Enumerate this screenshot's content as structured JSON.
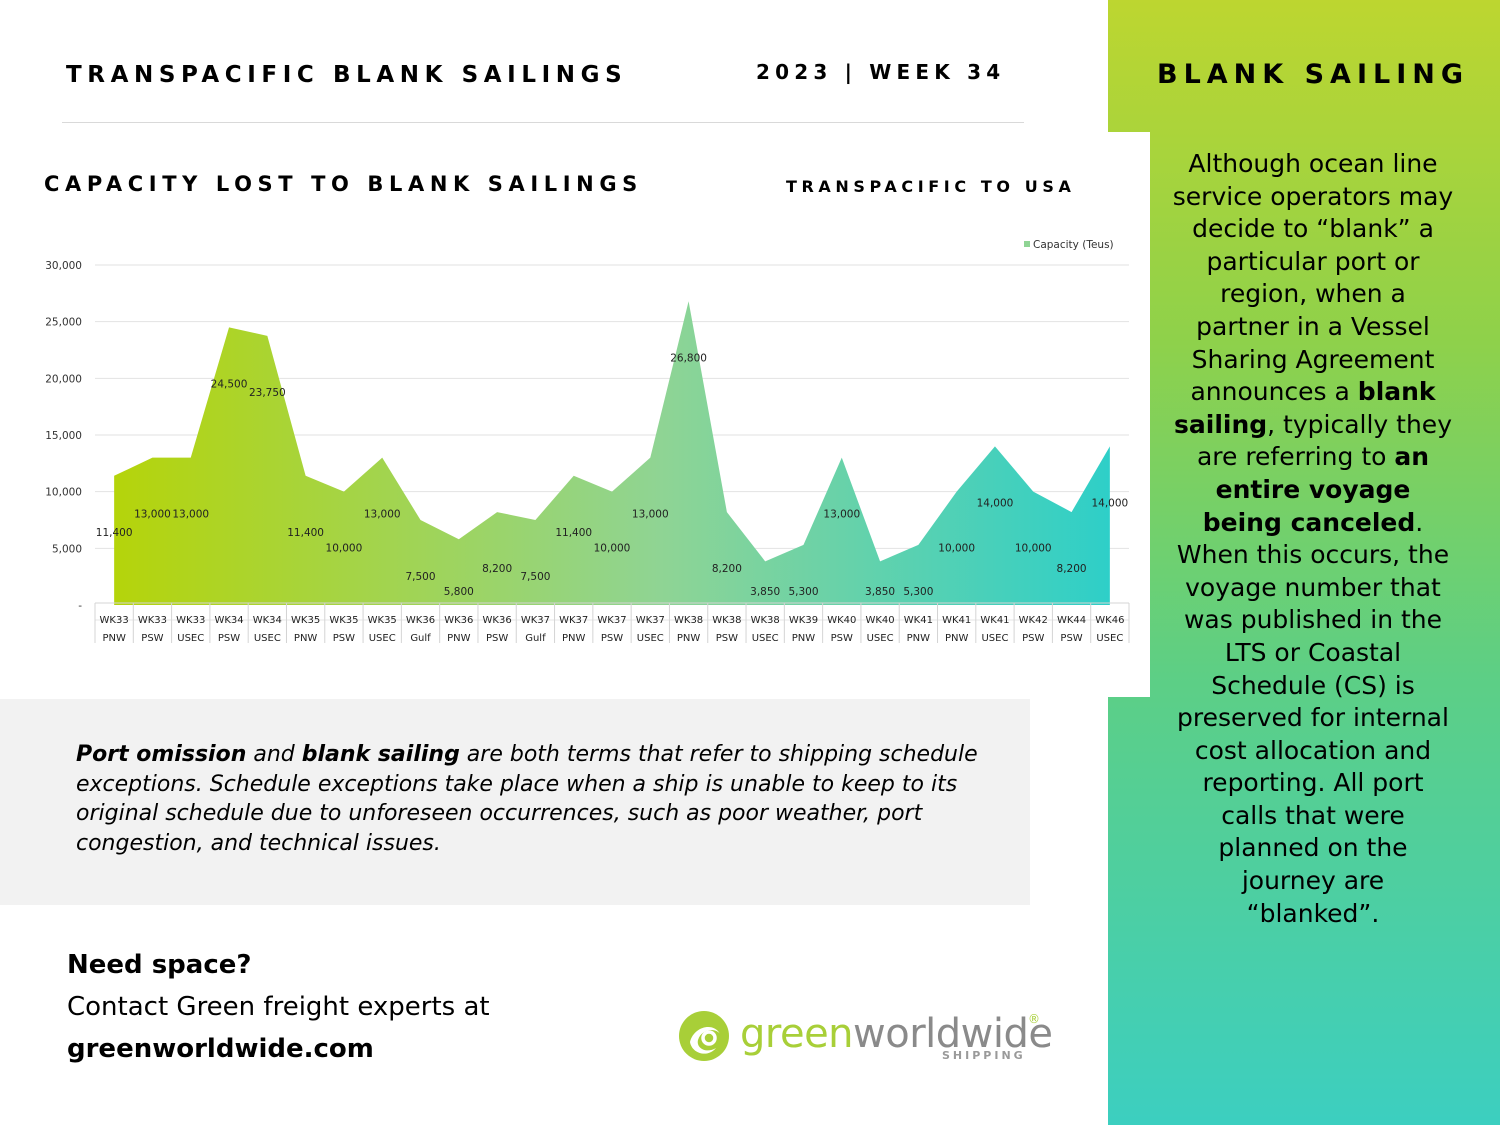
{
  "header": {
    "title": "TRANSPACIFIC BLANK SAILINGS",
    "week": "2023 | WEEK 34"
  },
  "chart_data": {
    "type": "area",
    "title": "CAPACITY LOST TO BLANK SAILINGS",
    "subtitle": "TRANSPACIFIC TO USA",
    "legend": {
      "label": "Capacity (Teus)",
      "position": "top-right"
    },
    "ylim": [
      0,
      30000
    ],
    "yticks": [
      {
        "value": 0,
        "label": "-"
      },
      {
        "value": 5000,
        "label": "5,000"
      },
      {
        "value": 10000,
        "label": "10,000"
      },
      {
        "value": 15000,
        "label": "15,000"
      },
      {
        "value": 20000,
        "label": "20,000"
      },
      {
        "value": 25000,
        "label": "25,000"
      },
      {
        "value": 30000,
        "label": "30,000"
      }
    ],
    "grid": true,
    "categories": [
      [
        "WK33",
        "PNW"
      ],
      [
        "WK33",
        "PSW"
      ],
      [
        "WK33",
        "USEC"
      ],
      [
        "WK34",
        "PSW"
      ],
      [
        "WK34",
        "USEC"
      ],
      [
        "WK35",
        "PNW"
      ],
      [
        "WK35",
        "PSW"
      ],
      [
        "WK35",
        "USEC"
      ],
      [
        "WK36",
        "Gulf"
      ],
      [
        "WK36",
        "PNW"
      ],
      [
        "WK36",
        "PSW"
      ],
      [
        "WK37",
        "Gulf"
      ],
      [
        "WK37",
        "PNW"
      ],
      [
        "WK37",
        "PSW"
      ],
      [
        "WK37",
        "USEC"
      ],
      [
        "WK38",
        "PNW"
      ],
      [
        "WK38",
        "PSW"
      ],
      [
        "WK38",
        "USEC"
      ],
      [
        "WK39",
        "PNW"
      ],
      [
        "WK40",
        "PSW"
      ],
      [
        "WK40",
        "USEC"
      ],
      [
        "WK41",
        "PNW"
      ],
      [
        "WK41",
        "PNW"
      ],
      [
        "WK41",
        "USEC"
      ],
      [
        "WK42",
        "PSW"
      ],
      [
        "WK44",
        "PSW"
      ],
      [
        "WK46",
        "USEC"
      ]
    ],
    "series": [
      {
        "name": "Capacity (Teus)",
        "values": [
          11400,
          13000,
          13000,
          24500,
          23750,
          11400,
          10000,
          13000,
          7500,
          5800,
          8200,
          7500,
          11400,
          10000,
          13000,
          26800,
          8200,
          3850,
          5300,
          13000,
          3850,
          5300,
          10000,
          14000,
          10000,
          8200,
          14000
        ],
        "labels": [
          "11,400",
          "13,000",
          "13,000",
          "24,500",
          "23,750",
          "11,400",
          "10,000",
          "13,000",
          "7,500",
          "5,800",
          "8,200",
          "7,500",
          "11,400",
          "10,000",
          "13,000",
          "26,800",
          "8,200",
          "3,850",
          "5,300",
          "13,000",
          "3,850",
          "5,300",
          "10,000",
          "14,000",
          "10,000",
          "8,200",
          "14,000"
        ]
      }
    ],
    "colors": {
      "start": "#b5d40a",
      "mid": "#8fd494",
      "end": "#2ecfc8"
    }
  },
  "note": {
    "term1": "Port omission",
    "and": " and ",
    "term2": "blank sailing",
    "rest": " are both terms that refer to shipping schedule exceptions. Schedule exceptions take place when a ship is unable to keep to its original schedule due to unforeseen occurrences, such as poor weather, port congestion, and technical issues."
  },
  "cta": {
    "heading": "Need space?",
    "line": "Contact Green freight experts at",
    "url": "greenworldwide.com"
  },
  "sidebar": {
    "title": "BLANK SAILING",
    "p1": "Although ocean line service operators may decide to “blank” a particular port or region, when a partner in a Vessel Sharing Agreement announces a ",
    "b1": "blank sailing",
    "p2": ", typically they are referring to ",
    "b2": "an entire voyage being canceled",
    "p3": ". When this occurs, the voyage number that was published in the LTS or Coastal Schedule (CS) is preserved for internal cost allocation and reporting. All port calls that were planned on the journey are “blanked”."
  },
  "logo": {
    "green": "green",
    "worldwide": "worldwide",
    "reg": "®",
    "sub": "SHIPPING",
    "icon": "globe-swirl-icon"
  }
}
